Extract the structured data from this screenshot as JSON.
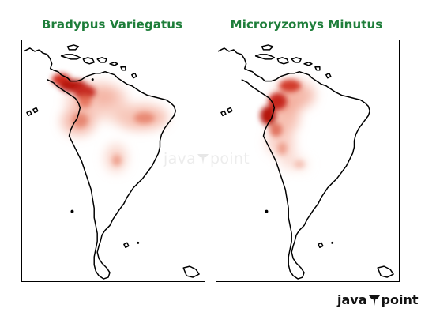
{
  "panels": [
    {
      "title": "Bradypus Variegatus"
    },
    {
      "title": "Microryzomys Minutus"
    }
  ],
  "watermark": {
    "left": "java",
    "right": "point"
  },
  "brand": {
    "left": "java",
    "right": "point"
  },
  "colors": {
    "title": "#1e7e3a",
    "density_high": "#b01010",
    "density_low": "#fde6dd",
    "coast": "#000000"
  }
}
